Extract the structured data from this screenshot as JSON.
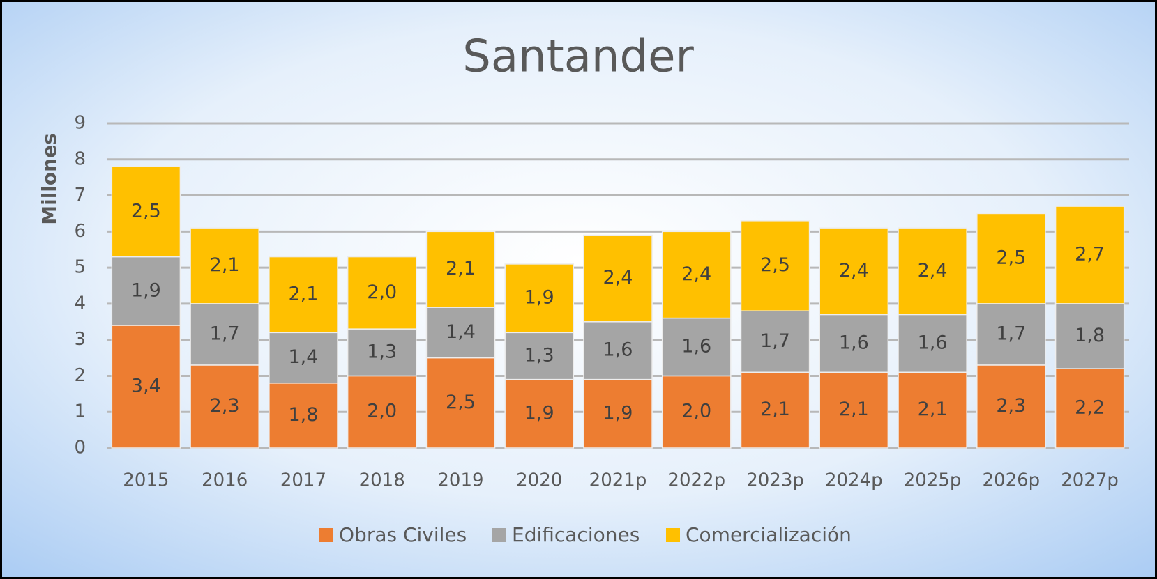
{
  "chart_data": {
    "type": "stacked-bar",
    "title": "Santander",
    "y_label": "Millones",
    "categories": [
      "2015",
      "2016",
      "2017",
      "2018",
      "2019",
      "2020",
      "2021p",
      "2022p",
      "2023p",
      "2024p",
      "2025p",
      "2026p",
      "2027p"
    ],
    "series": [
      {
        "name": "Obras Civiles",
        "color": "#ED7D31",
        "values": [
          3.4,
          2.3,
          1.8,
          2.0,
          2.5,
          1.9,
          1.9,
          2.0,
          2.1,
          2.1,
          2.1,
          2.3,
          2.2
        ],
        "value_labels": [
          "3,4",
          "2,3",
          "1,8",
          "2,0",
          "2,5",
          "1,9",
          "1,9",
          "2,0",
          "2,1",
          "2,1",
          "2,1",
          "2,3",
          "2,2"
        ]
      },
      {
        "name": "Edificaciones",
        "color": "#A5A5A5",
        "values": [
          1.9,
          1.7,
          1.4,
          1.3,
          1.4,
          1.3,
          1.6,
          1.6,
          1.7,
          1.6,
          1.6,
          1.7,
          1.8
        ],
        "value_labels": [
          "1,9",
          "1,7",
          "1,4",
          "1,3",
          "1,4",
          "1,3",
          "1,6",
          "1,6",
          "1,7",
          "1,6",
          "1,6",
          "1,7",
          "1,8"
        ]
      },
      {
        "name": "Comercialización",
        "color": "#FFC000",
        "values": [
          2.5,
          2.1,
          2.1,
          2.0,
          2.1,
          1.9,
          2.4,
          2.4,
          2.5,
          2.4,
          2.4,
          2.5,
          2.7
        ],
        "value_labels": [
          "2,5",
          "2,1",
          "2,1",
          "2,0",
          "2,1",
          "1,9",
          "2,4",
          "2,4",
          "2,5",
          "2,4",
          "2,4",
          "2,5",
          "2,7"
        ]
      }
    ],
    "ylim": [
      0,
      9
    ],
    "yticks": [
      0,
      1,
      2,
      3,
      4,
      5,
      6,
      7,
      8,
      9
    ],
    "grid": true,
    "legend": "bottom"
  }
}
